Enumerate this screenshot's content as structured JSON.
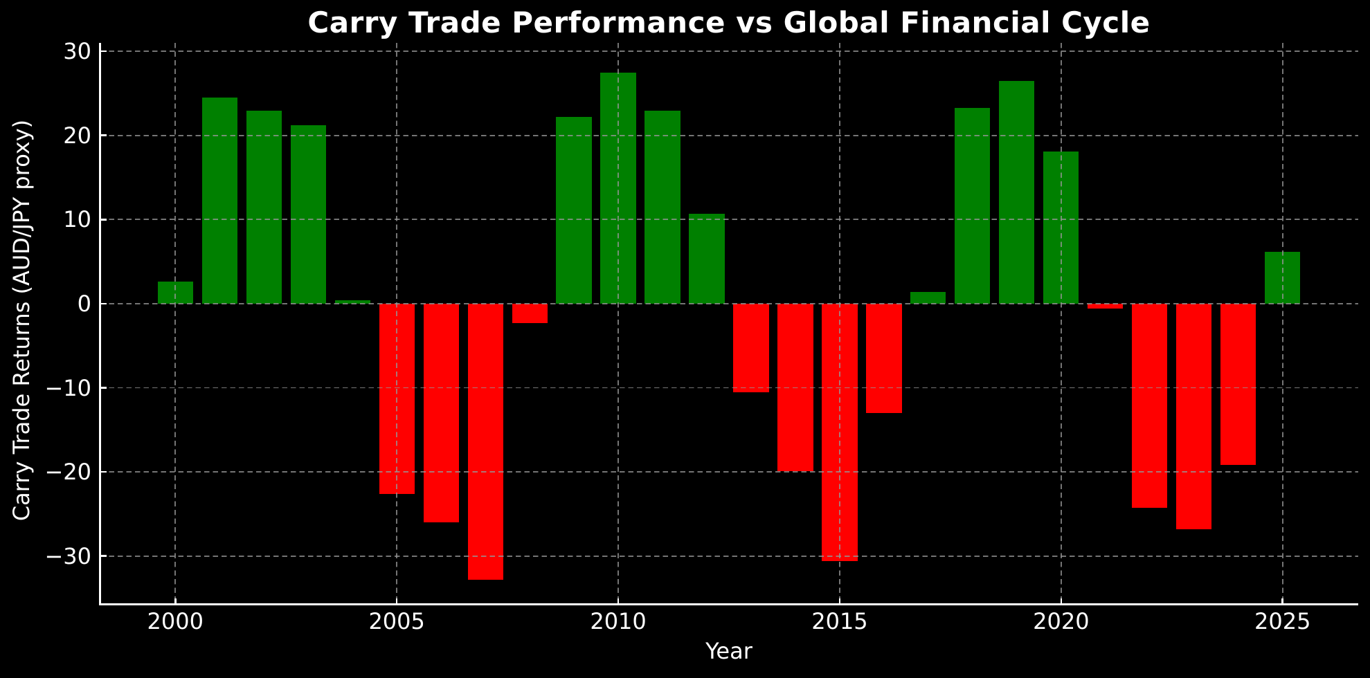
{
  "chart_data": {
    "type": "bar",
    "title": "Carry Trade Performance vs Global Financial Cycle",
    "xlabel": "Year",
    "ylabel": "Carry Trade Returns (AUD/JPY proxy)",
    "categories": [
      2000,
      2001,
      2002,
      2003,
      2004,
      2005,
      2006,
      2007,
      2008,
      2009,
      2010,
      2011,
      2012,
      2013,
      2014,
      2015,
      2016,
      2017,
      2018,
      2019,
      2020,
      2021,
      2022,
      2023,
      2024,
      2025
    ],
    "values": [
      2.6,
      24.5,
      22.9,
      21.2,
      0.4,
      -22.6,
      -26.0,
      -32.8,
      -2.3,
      22.2,
      27.5,
      22.9,
      10.7,
      -10.5,
      -19.9,
      -30.6,
      -13.0,
      1.4,
      23.3,
      26.5,
      18.1,
      -0.6,
      -24.3,
      -26.8,
      -19.2,
      6.2
    ],
    "xticks": [
      2000,
      2005,
      2010,
      2015,
      2020,
      2025
    ],
    "yticks": [
      30,
      20,
      10,
      0,
      -10,
      -20,
      -30
    ],
    "xlim": [
      1998.3,
      2026.7
    ],
    "ylim": [
      -35.7,
      31.0
    ],
    "bar_width_years": 0.8,
    "positive_color": "#008000",
    "negative_color": "#ff0000",
    "background_color": "#000000",
    "text_color": "#ffffff",
    "grid_color": "#969696",
    "grid": true,
    "grid_style": "dashed",
    "legend_position": "none"
  }
}
